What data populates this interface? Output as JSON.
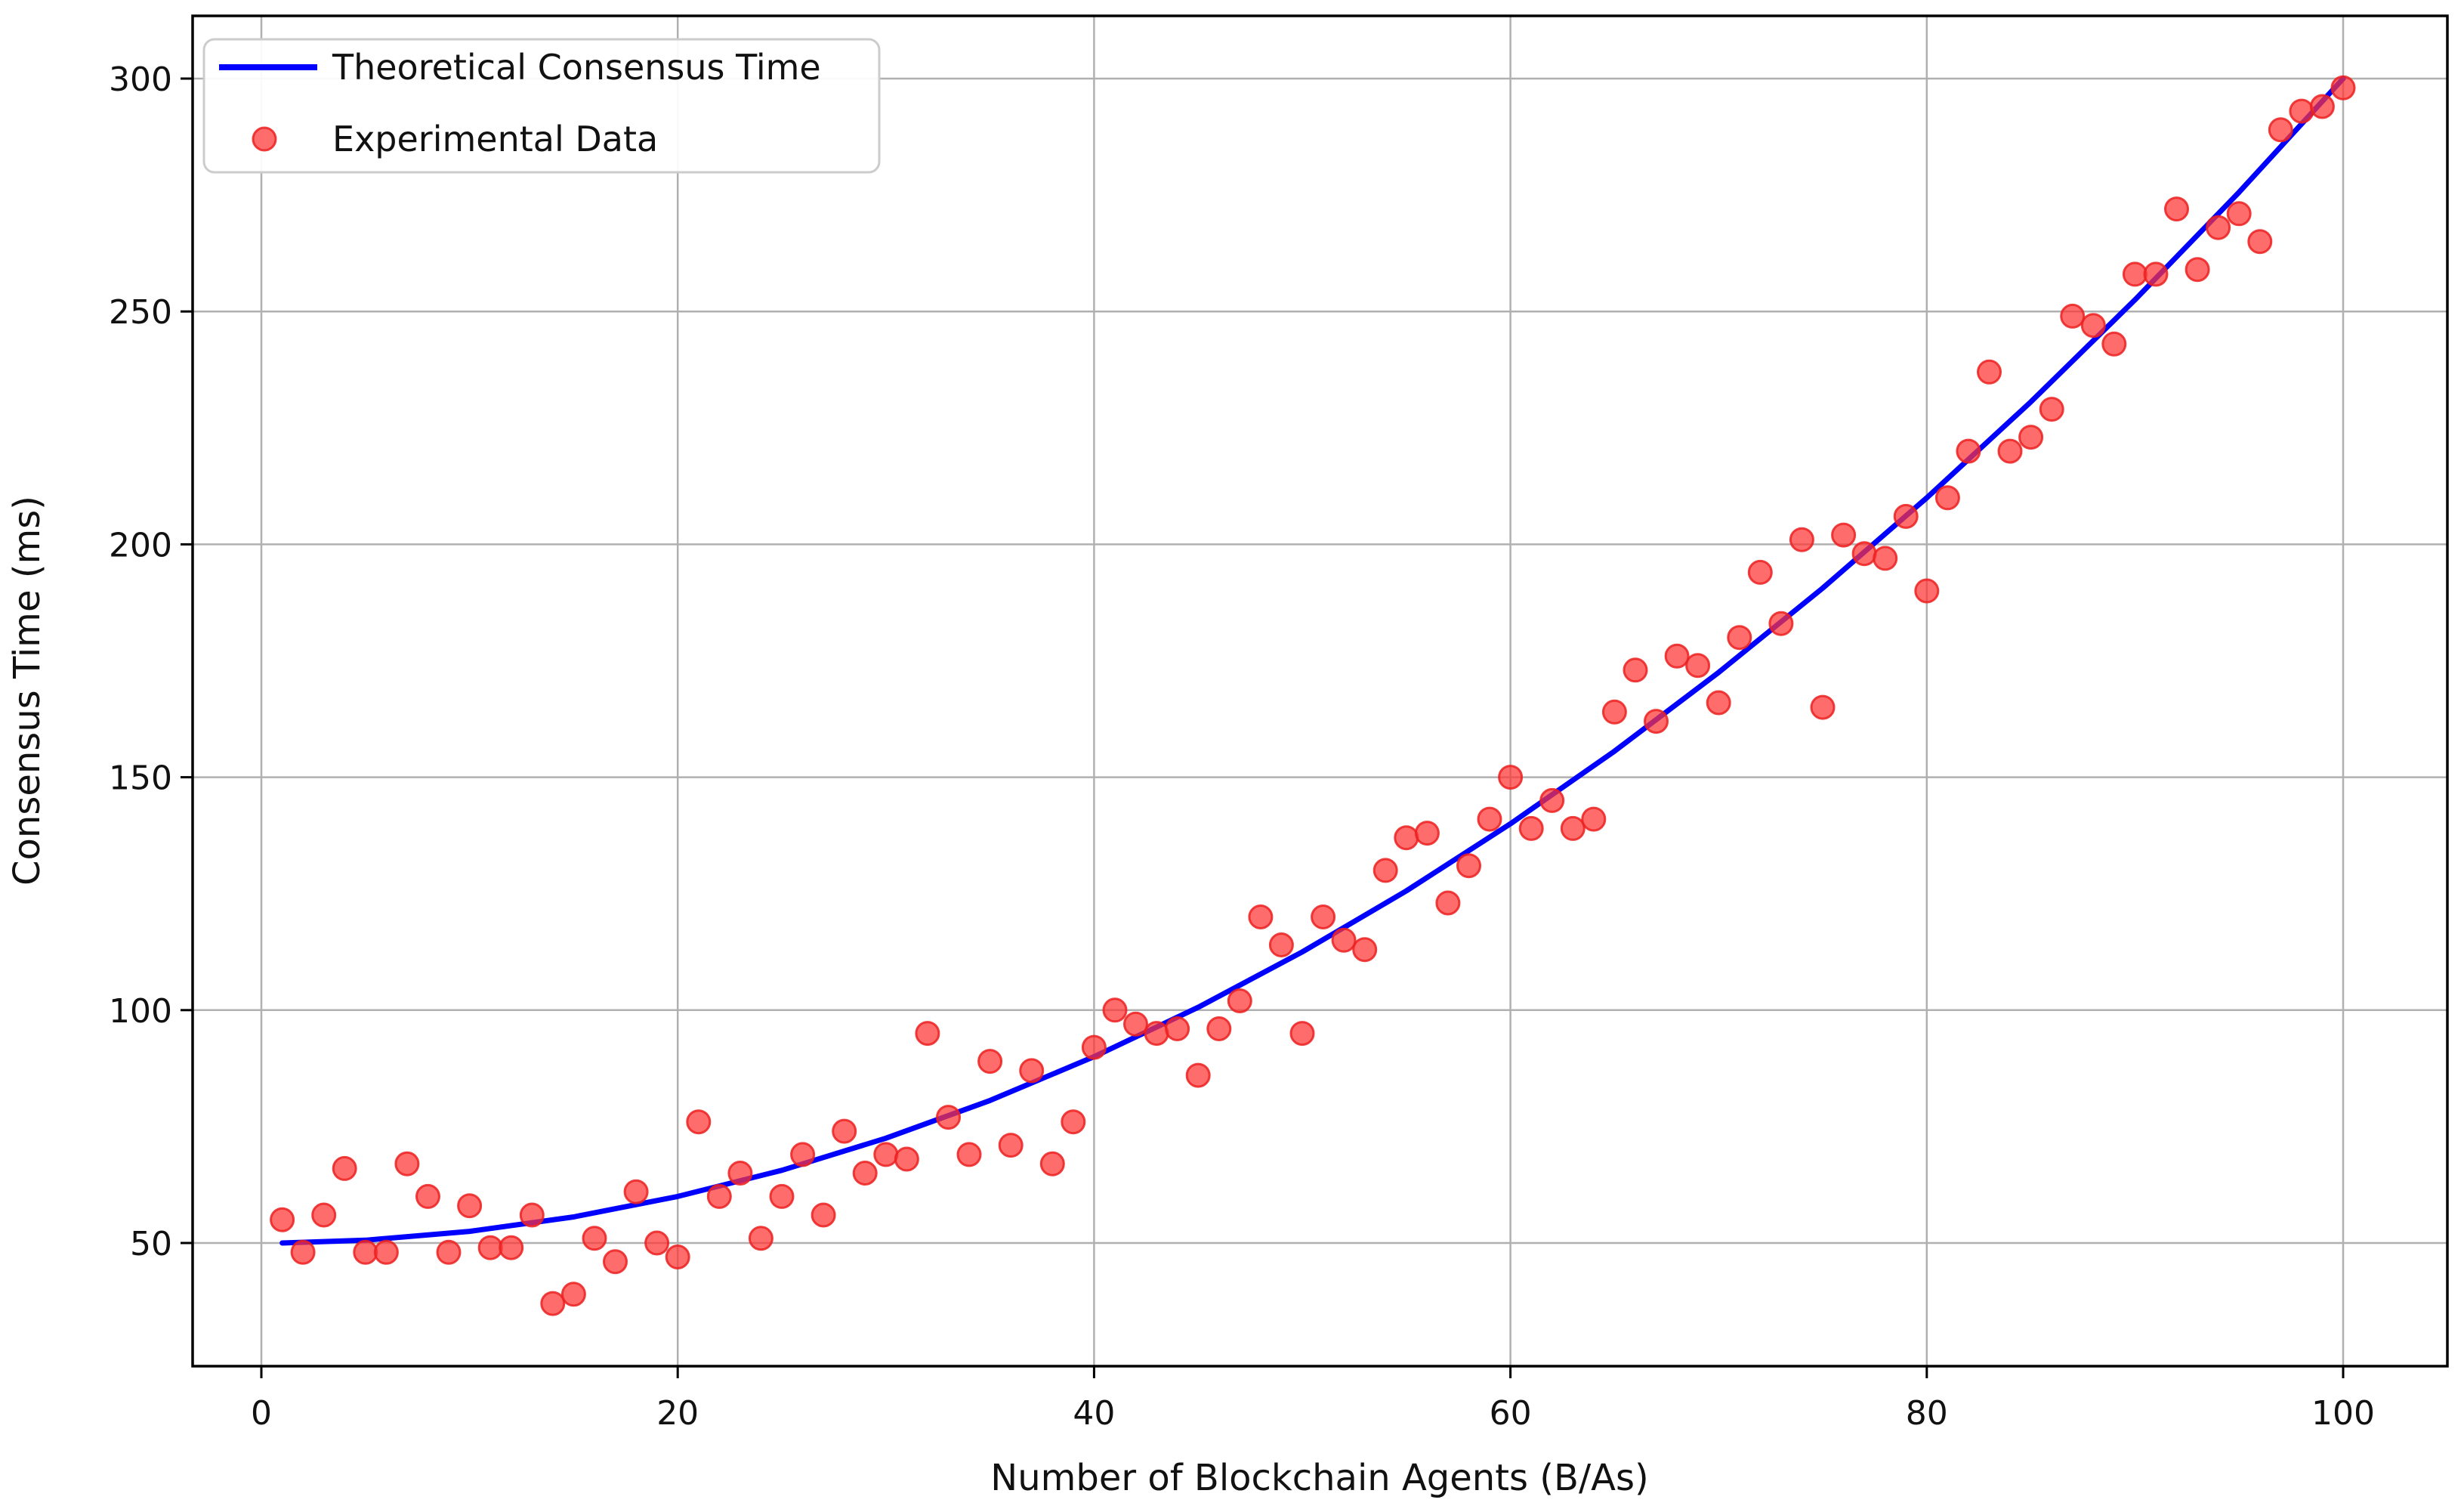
{
  "chart_data": {
    "type": "scatter",
    "title": "",
    "xlabel": "Number of Blockchain Agents (B/As)",
    "ylabel": "Consensus Time (ms)",
    "xlim": [
      -4,
      105
    ],
    "ylim": [
      23.5,
      313.5
    ],
    "x_ticks": [
      0,
      20,
      40,
      60,
      80,
      100
    ],
    "y_ticks": [
      50,
      100,
      150,
      200,
      250,
      300
    ],
    "grid": true,
    "grid_color": "#b0b0b0",
    "background_color": "#ffffff",
    "legend": {
      "position": "upper left"
    },
    "series": [
      {
        "name": "Theoretical Consensus Time",
        "type": "line",
        "color": "#0000ff",
        "points": [
          [
            1,
            50.0
          ],
          [
            5,
            50.6
          ],
          [
            10,
            52.5
          ],
          [
            15,
            55.6
          ],
          [
            20,
            60.0
          ],
          [
            25,
            65.6
          ],
          [
            30,
            72.5
          ],
          [
            35,
            80.6
          ],
          [
            40,
            90.0
          ],
          [
            45,
            100.6
          ],
          [
            50,
            112.5
          ],
          [
            55,
            125.6
          ],
          [
            60,
            140.0
          ],
          [
            65,
            155.6
          ],
          [
            70,
            172.5
          ],
          [
            75,
            190.6
          ],
          [
            80,
            210.0
          ],
          [
            85,
            230.6
          ],
          [
            90,
            252.5
          ],
          [
            95,
            275.6
          ],
          [
            100,
            300.0
          ]
        ]
      },
      {
        "name": "Experimental Data",
        "type": "scatter",
        "color": "#ff3333",
        "edge_color": "#ec2020",
        "opacity": 0.72,
        "points": [
          [
            1,
            55
          ],
          [
            2,
            48
          ],
          [
            3,
            56
          ],
          [
            4,
            66
          ],
          [
            5,
            48
          ],
          [
            6,
            48
          ],
          [
            7,
            67
          ],
          [
            8,
            60
          ],
          [
            9,
            48
          ],
          [
            10,
            58
          ],
          [
            11,
            49
          ],
          [
            12,
            49
          ],
          [
            13,
            56
          ],
          [
            14,
            37
          ],
          [
            15,
            39
          ],
          [
            16,
            51
          ],
          [
            17,
            46
          ],
          [
            18,
            61
          ],
          [
            19,
            50
          ],
          [
            20,
            47
          ],
          [
            21,
            76
          ],
          [
            22,
            60
          ],
          [
            23,
            65
          ],
          [
            24,
            51
          ],
          [
            25,
            60
          ],
          [
            26,
            69
          ],
          [
            27,
            56
          ],
          [
            28,
            74
          ],
          [
            29,
            65
          ],
          [
            30,
            69
          ],
          [
            31,
            68
          ],
          [
            32,
            95
          ],
          [
            33,
            77
          ],
          [
            34,
            69
          ],
          [
            35,
            89
          ],
          [
            36,
            71
          ],
          [
            37,
            87
          ],
          [
            38,
            67
          ],
          [
            39,
            76
          ],
          [
            40,
            92
          ],
          [
            41,
            100
          ],
          [
            42,
            97
          ],
          [
            43,
            95
          ],
          [
            44,
            96
          ],
          [
            45,
            86
          ],
          [
            46,
            96
          ],
          [
            47,
            102
          ],
          [
            48,
            120
          ],
          [
            49,
            114
          ],
          [
            50,
            95
          ],
          [
            51,
            120
          ],
          [
            52,
            115
          ],
          [
            53,
            113
          ],
          [
            54,
            130
          ],
          [
            55,
            137
          ],
          [
            56,
            138
          ],
          [
            57,
            123
          ],
          [
            58,
            131
          ],
          [
            59,
            141
          ],
          [
            60,
            150
          ],
          [
            61,
            139
          ],
          [
            62,
            145
          ],
          [
            63,
            139
          ],
          [
            64,
            141
          ],
          [
            65,
            164
          ],
          [
            66,
            173
          ],
          [
            67,
            162
          ],
          [
            68,
            176
          ],
          [
            69,
            174
          ],
          [
            70,
            166
          ],
          [
            71,
            180
          ],
          [
            72,
            194
          ],
          [
            73,
            183
          ],
          [
            74,
            201
          ],
          [
            75,
            165
          ],
          [
            76,
            202
          ],
          [
            77,
            198
          ],
          [
            78,
            197
          ],
          [
            79,
            206
          ],
          [
            80,
            190
          ],
          [
            81,
            210
          ],
          [
            82,
            220
          ],
          [
            83,
            237
          ],
          [
            84,
            220
          ],
          [
            85,
            223
          ],
          [
            86,
            229
          ],
          [
            87,
            249
          ],
          [
            88,
            247
          ],
          [
            89,
            243
          ],
          [
            90,
            258
          ],
          [
            91,
            258
          ],
          [
            92,
            272
          ],
          [
            93,
            259
          ],
          [
            94,
            268
          ],
          [
            95,
            271
          ],
          [
            96,
            265
          ],
          [
            97,
            289
          ],
          [
            98,
            293
          ],
          [
            99,
            294
          ],
          [
            100,
            298
          ]
        ]
      }
    ]
  }
}
